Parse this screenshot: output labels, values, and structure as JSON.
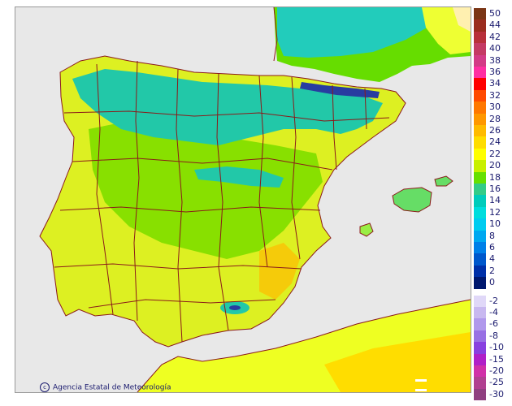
{
  "map": {
    "title": "",
    "credit": "Agencia Estatal de Meteorología",
    "logo_text": "aemet"
  },
  "colors": {
    "background": "#e8e8e8",
    "sea": "#e8e8e8",
    "borders": "#8b1a1a",
    "pyrenees_dark": "#283ca0"
  },
  "legend": {
    "items": [
      {
        "label": "50",
        "color": "#7a3515"
      },
      {
        "label": "44",
        "color": "#9b2d1f"
      },
      {
        "label": "42",
        "color": "#b8303a"
      },
      {
        "label": "40",
        "color": "#c43a63"
      },
      {
        "label": "38",
        "color": "#d33b86"
      },
      {
        "label": "36",
        "color": "#ff2fa2"
      },
      {
        "label": "34",
        "color": "#ff0000"
      },
      {
        "label": "32",
        "color": "#ff4a00"
      },
      {
        "label": "30",
        "color": "#ff7800"
      },
      {
        "label": "28",
        "color": "#ff9800"
      },
      {
        "label": "26",
        "color": "#ffbb00"
      },
      {
        "label": "24",
        "color": "#ffdd00"
      },
      {
        "label": "22",
        "color": "#ffff00"
      },
      {
        "label": "20",
        "color": "#c8f000"
      },
      {
        "label": "18",
        "color": "#66e000"
      },
      {
        "label": "16",
        "color": "#33cc88"
      },
      {
        "label": "14",
        "color": "#00ccbb"
      },
      {
        "label": "12",
        "color": "#00dddd"
      },
      {
        "label": "10",
        "color": "#00ccf0"
      },
      {
        "label": "8",
        "color": "#00a8f0"
      },
      {
        "label": "6",
        "color": "#0080e8"
      },
      {
        "label": "4",
        "color": "#0058cc"
      },
      {
        "label": "2",
        "color": "#0030a8"
      },
      {
        "label": "0",
        "color": "#00186e"
      },
      {
        "label": "-2",
        "color": "#e0d8f8"
      },
      {
        "label": "-4",
        "color": "#c8b8f0"
      },
      {
        "label": "-6",
        "color": "#b098ec"
      },
      {
        "label": "-8",
        "color": "#9870e4"
      },
      {
        "label": "-10",
        "color": "#8840e0"
      },
      {
        "label": "-15",
        "color": "#b020c8"
      },
      {
        "label": "-20",
        "color": "#d030a8"
      },
      {
        "label": "-25",
        "color": "#b04090"
      },
      {
        "label": "-30",
        "color": "#904080"
      }
    ]
  }
}
